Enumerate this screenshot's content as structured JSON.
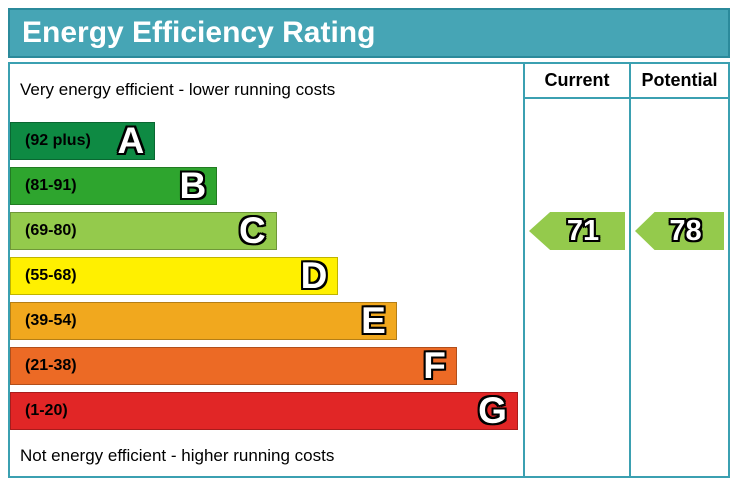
{
  "header": {
    "title": "Energy Efficiency Rating"
  },
  "notes": {
    "top": "Very energy efficient - lower running costs",
    "bottom": "Not energy efficient - higher running costs"
  },
  "table": {
    "current_label": "Current",
    "potential_label": "Potential"
  },
  "bands": [
    {
      "letter": "A",
      "range": "(92 plus)",
      "color": "#0e8a43",
      "width_pct": 28.3
    },
    {
      "letter": "B",
      "range": "(81-91)",
      "color": "#2ea52e",
      "width_pct": 40.4
    },
    {
      "letter": "C",
      "range": "(69-80)",
      "color": "#94ca4c",
      "width_pct": 52.0
    },
    {
      "letter": "D",
      "range": "(55-68)",
      "color": "#fff000",
      "width_pct": 64.0
    },
    {
      "letter": "E",
      "range": "(39-54)",
      "color": "#f1a81e",
      "width_pct": 75.4
    },
    {
      "letter": "F",
      "range": "(21-38)",
      "color": "#ec6a25",
      "width_pct": 87.1
    },
    {
      "letter": "G",
      "range": "(1-20)",
      "color": "#e12626",
      "width_pct": 99.0
    }
  ],
  "ratings": {
    "current": {
      "value": "71",
      "band": "C",
      "row_index": 2,
      "color": "#94ca4c"
    },
    "potential": {
      "value": "78",
      "band": "C",
      "row_index": 2,
      "color": "#94ca4c"
    }
  },
  "colors": {
    "title_bg": "#46a5b5",
    "title_border": "#2b8a9b",
    "table_border": "#3ba0b1"
  },
  "chart_data": {
    "type": "bar",
    "orientation": "horizontal",
    "title": "Energy Efficiency Rating",
    "categories": [
      "A",
      "B",
      "C",
      "D",
      "E",
      "F",
      "G"
    ],
    "band_ranges": [
      "92 plus",
      "81-91",
      "69-80",
      "55-68",
      "39-54",
      "21-38",
      "1-20"
    ],
    "band_colors": [
      "#0e8a43",
      "#2ea52e",
      "#94ca4c",
      "#fff000",
      "#f1a81e",
      "#ec6a25",
      "#e12626"
    ],
    "values": [
      28.3,
      40.4,
      52.0,
      64.0,
      75.4,
      87.1,
      99.0
    ],
    "value_unit": "percent-of-chart-width",
    "scale_range": [
      1,
      100
    ],
    "markers": [
      {
        "label": "Current",
        "value": 71,
        "band": "C"
      },
      {
        "label": "Potential",
        "value": 78,
        "band": "C"
      }
    ],
    "annotation_top": "Very energy efficient - lower running costs",
    "annotation_bottom": "Not energy efficient - higher running costs",
    "legend_position": "none",
    "grid": false
  }
}
